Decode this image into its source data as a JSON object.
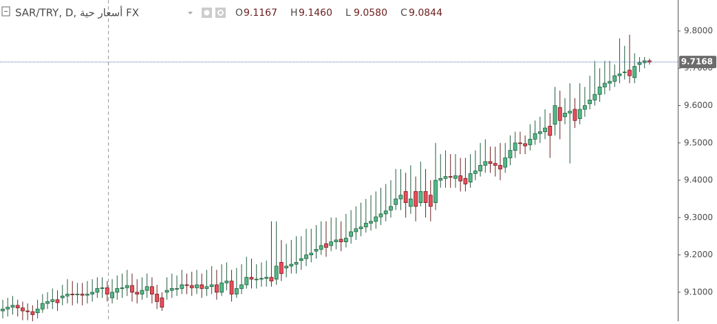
{
  "chart_data": {
    "type": "candlestick",
    "title": "SAR/TRY, D, أسعار حية FX",
    "ohlc_legend": [
      {
        "label": "O",
        "value": "9.1167"
      },
      {
        "label": "H",
        "value": "9.1460"
      },
      {
        "label": "L",
        "value": "9.0580"
      },
      {
        "label": "C",
        "value": "9.0844"
      }
    ],
    "up_color": "#53b987",
    "down_color": "#eb4d5c",
    "up_border": "#1f5b3b",
    "down_border": "#6a1c1c",
    "last_price": 9.7168,
    "last_price_color": "#4a6eb0",
    "ylim": [
      9.0223,
      9.8829
    ],
    "yticks": [
      {
        "value": 9.1,
        "label": "9.1000"
      },
      {
        "value": 9.2,
        "label": "9.2000"
      },
      {
        "value": 9.3,
        "label": "9.3000"
      },
      {
        "value": 9.4,
        "label": "9.4000"
      },
      {
        "value": 9.5,
        "label": "9.5000"
      },
      {
        "value": 9.6,
        "label": "9.6000"
      },
      {
        "value": 9.7,
        "label": "9.7000"
      },
      {
        "value": 9.8,
        "label": "9.8000"
      }
    ],
    "open": [
      9.05,
      9.055,
      9.06,
      9.065,
      9.058,
      9.05,
      9.048,
      9.045,
      9.055,
      9.07,
      9.075,
      9.08,
      9.085,
      9.09,
      9.095,
      9.093,
      9.095,
      9.092,
      9.095,
      9.1,
      9.11,
      9.112,
      9.085,
      9.1,
      9.11,
      9.112,
      9.118,
      9.1,
      9.095,
      9.105,
      9.115,
      9.095,
      9.085,
      9.1,
      9.105,
      9.11,
      9.11,
      9.12,
      9.118,
      9.112,
      9.12,
      9.11,
      9.115,
      9.12,
      9.1,
      9.125,
      9.13,
      9.095,
      9.11,
      9.12,
      9.14,
      9.135,
      9.135,
      9.137,
      9.14,
      9.135,
      9.18,
      9.165,
      9.17,
      9.175,
      9.185,
      9.19,
      9.2,
      9.21,
      9.215,
      9.23,
      9.225,
      9.235,
      9.242,
      9.235,
      9.25,
      9.262,
      9.27,
      9.275,
      9.285,
      9.29,
      9.302,
      9.31,
      9.32,
      9.335,
      9.35,
      9.37,
      9.33,
      9.37,
      9.34,
      9.37,
      9.36,
      9.34,
      9.4,
      9.405,
      9.41,
      9.405,
      9.412,
      9.405,
      9.395,
      9.418,
      9.425,
      9.44,
      9.45,
      9.445,
      9.44,
      9.435,
      9.46,
      9.48,
      9.5,
      9.498,
      9.495,
      9.51,
      9.525,
      9.53,
      9.545,
      9.55,
      9.595,
      9.57,
      9.58,
      9.59,
      9.565,
      9.59,
      9.605,
      9.615,
      9.63,
      9.65,
      9.66,
      9.665,
      9.68,
      9.69,
      9.695,
      9.675,
      9.71,
      9.715,
      9.72
    ],
    "high": [
      9.08,
      9.085,
      9.09,
      9.08,
      9.075,
      9.07,
      9.065,
      9.08,
      9.095,
      9.1,
      9.11,
      9.105,
      9.12,
      9.135,
      9.13,
      9.125,
      9.125,
      9.13,
      9.135,
      9.14,
      9.14,
      9.13,
      9.135,
      9.145,
      9.15,
      9.16,
      9.15,
      9.135,
      9.14,
      9.15,
      9.14,
      9.12,
      9.1,
      9.14,
      9.15,
      9.145,
      9.16,
      9.15,
      9.155,
      9.16,
      9.15,
      9.16,
      9.17,
      9.16,
      9.175,
      9.18,
      9.16,
      9.165,
      9.175,
      9.195,
      9.19,
      9.175,
      9.18,
      9.185,
      9.29,
      9.29,
      9.24,
      9.23,
      9.24,
      9.25,
      9.25,
      9.27,
      9.27,
      9.28,
      9.29,
      9.29,
      9.3,
      9.3,
      9.29,
      9.31,
      9.32,
      9.33,
      9.34,
      9.35,
      9.36,
      9.37,
      9.38,
      9.39,
      9.4,
      9.43,
      9.43,
      9.42,
      9.44,
      9.41,
      9.45,
      9.43,
      9.4,
      9.5,
      9.47,
      9.48,
      9.47,
      9.47,
      9.46,
      9.46,
      9.47,
      9.48,
      9.5,
      9.51,
      9.49,
      9.49,
      9.5,
      9.5,
      9.52,
      9.53,
      9.53,
      9.52,
      9.55,
      9.56,
      9.57,
      9.59,
      9.58,
      9.65,
      9.64,
      9.62,
      9.66,
      9.62,
      9.66,
      9.65,
      9.68,
      9.72,
      9.7,
      9.72,
      9.72,
      9.71,
      9.78,
      9.76,
      9.79,
      9.74,
      9.73,
      9.73,
      9.726
    ],
    "low": [
      9.03,
      9.035,
      9.04,
      9.035,
      9.025,
      9.025,
      9.02,
      9.03,
      9.045,
      9.055,
      9.055,
      9.05,
      9.065,
      9.07,
      9.065,
      9.07,
      9.065,
      9.07,
      9.075,
      9.085,
      9.085,
      9.075,
      9.07,
      9.08,
      9.085,
      9.09,
      9.075,
      9.07,
      9.08,
      9.085,
      9.07,
      9.055,
      9.05,
      9.08,
      9.085,
      9.09,
      9.095,
      9.095,
      9.09,
      9.095,
      9.085,
      9.09,
      9.095,
      9.08,
      9.09,
      9.105,
      9.075,
      9.085,
      9.095,
      9.11,
      9.11,
      9.11,
      9.115,
      9.115,
      9.115,
      9.12,
      9.13,
      9.14,
      9.15,
      9.15,
      9.16,
      9.17,
      9.18,
      9.19,
      9.2,
      9.195,
      9.21,
      9.215,
      9.21,
      9.22,
      9.23,
      9.24,
      9.25,
      9.26,
      9.265,
      9.27,
      9.28,
      9.29,
      9.3,
      9.32,
      9.32,
      9.3,
      9.31,
      9.29,
      9.33,
      9.3,
      9.29,
      9.32,
      9.38,
      9.38,
      9.38,
      9.38,
      9.37,
      9.37,
      9.38,
      9.4,
      9.41,
      9.42,
      9.42,
      9.41,
      9.4,
      9.42,
      9.44,
      9.46,
      9.47,
      9.47,
      9.48,
      9.495,
      9.5,
      9.51,
      9.46,
      9.52,
      9.51,
      9.55,
      9.445,
      9.54,
      9.55,
      9.57,
      9.59,
      9.6,
      9.61,
      9.63,
      9.64,
      9.65,
      9.66,
      9.67,
      9.66,
      9.66,
      9.69,
      9.7,
      9.71
    ],
    "close": [
      9.055,
      9.06,
      9.065,
      9.058,
      9.05,
      9.048,
      9.04,
      9.055,
      9.07,
      9.075,
      9.08,
      9.072,
      9.09,
      9.095,
      9.093,
      9.095,
      9.092,
      9.095,
      9.1,
      9.11,
      9.112,
      9.095,
      9.1,
      9.11,
      9.112,
      9.118,
      9.1,
      9.095,
      9.105,
      9.115,
      9.095,
      9.075,
      9.06,
      9.105,
      9.11,
      9.11,
      9.12,
      9.118,
      9.112,
      9.12,
      9.11,
      9.115,
      9.12,
      9.1,
      9.125,
      9.13,
      9.095,
      9.11,
      9.12,
      9.14,
      9.135,
      9.135,
      9.137,
      9.14,
      9.13,
      9.17,
      9.15,
      9.17,
      9.175,
      9.18,
      9.19,
      9.2,
      9.205,
      9.215,
      9.225,
      9.22,
      9.235,
      9.24,
      9.235,
      9.245,
      9.262,
      9.27,
      9.275,
      9.285,
      9.29,
      9.302,
      9.31,
      9.318,
      9.33,
      9.35,
      9.36,
      9.34,
      9.35,
      9.33,
      9.37,
      9.34,
      9.33,
      9.4,
      9.405,
      9.41,
      9.408,
      9.412,
      9.398,
      9.39,
      9.418,
      9.425,
      9.44,
      9.45,
      9.445,
      9.44,
      9.43,
      9.46,
      9.48,
      9.5,
      9.498,
      9.492,
      9.51,
      9.525,
      9.53,
      9.54,
      9.52,
      9.6,
      9.56,
      9.58,
      9.585,
      9.56,
      9.59,
      9.6,
      9.615,
      9.63,
      9.65,
      9.66,
      9.665,
      9.68,
      9.685,
      9.69,
      9.68,
      9.705,
      9.715,
      9.72,
      9.7168
    ]
  }
}
